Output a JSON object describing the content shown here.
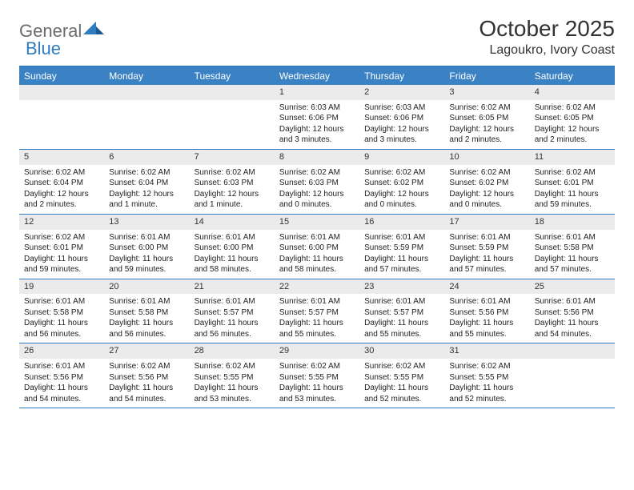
{
  "logo": {
    "text1": "General",
    "text2": "Blue"
  },
  "title": "October 2025",
  "location": "Lagoukro, Ivory Coast",
  "colors": {
    "header_bg": "#3b82c4",
    "border": "#2f7bbf",
    "daynum_bg": "#ebebeb",
    "text": "#222222",
    "logo_gray": "#6b6b6b",
    "logo_blue": "#2f7bbf"
  },
  "day_labels": [
    "Sunday",
    "Monday",
    "Tuesday",
    "Wednesday",
    "Thursday",
    "Friday",
    "Saturday"
  ],
  "weeks": [
    [
      {
        "empty": true
      },
      {
        "empty": true
      },
      {
        "empty": true
      },
      {
        "n": "1",
        "sr": "6:03 AM",
        "ss": "6:06 PM",
        "dl": "12 hours and 3 minutes."
      },
      {
        "n": "2",
        "sr": "6:03 AM",
        "ss": "6:06 PM",
        "dl": "12 hours and 3 minutes."
      },
      {
        "n": "3",
        "sr": "6:02 AM",
        "ss": "6:05 PM",
        "dl": "12 hours and 2 minutes."
      },
      {
        "n": "4",
        "sr": "6:02 AM",
        "ss": "6:05 PM",
        "dl": "12 hours and 2 minutes."
      }
    ],
    [
      {
        "n": "5",
        "sr": "6:02 AM",
        "ss": "6:04 PM",
        "dl": "12 hours and 2 minutes."
      },
      {
        "n": "6",
        "sr": "6:02 AM",
        "ss": "6:04 PM",
        "dl": "12 hours and 1 minute."
      },
      {
        "n": "7",
        "sr": "6:02 AM",
        "ss": "6:03 PM",
        "dl": "12 hours and 1 minute."
      },
      {
        "n": "8",
        "sr": "6:02 AM",
        "ss": "6:03 PM",
        "dl": "12 hours and 0 minutes."
      },
      {
        "n": "9",
        "sr": "6:02 AM",
        "ss": "6:02 PM",
        "dl": "12 hours and 0 minutes."
      },
      {
        "n": "10",
        "sr": "6:02 AM",
        "ss": "6:02 PM",
        "dl": "12 hours and 0 minutes."
      },
      {
        "n": "11",
        "sr": "6:02 AM",
        "ss": "6:01 PM",
        "dl": "11 hours and 59 minutes."
      }
    ],
    [
      {
        "n": "12",
        "sr": "6:02 AM",
        "ss": "6:01 PM",
        "dl": "11 hours and 59 minutes."
      },
      {
        "n": "13",
        "sr": "6:01 AM",
        "ss": "6:00 PM",
        "dl": "11 hours and 59 minutes."
      },
      {
        "n": "14",
        "sr": "6:01 AM",
        "ss": "6:00 PM",
        "dl": "11 hours and 58 minutes."
      },
      {
        "n": "15",
        "sr": "6:01 AM",
        "ss": "6:00 PM",
        "dl": "11 hours and 58 minutes."
      },
      {
        "n": "16",
        "sr": "6:01 AM",
        "ss": "5:59 PM",
        "dl": "11 hours and 57 minutes."
      },
      {
        "n": "17",
        "sr": "6:01 AM",
        "ss": "5:59 PM",
        "dl": "11 hours and 57 minutes."
      },
      {
        "n": "18",
        "sr": "6:01 AM",
        "ss": "5:58 PM",
        "dl": "11 hours and 57 minutes."
      }
    ],
    [
      {
        "n": "19",
        "sr": "6:01 AM",
        "ss": "5:58 PM",
        "dl": "11 hours and 56 minutes."
      },
      {
        "n": "20",
        "sr": "6:01 AM",
        "ss": "5:58 PM",
        "dl": "11 hours and 56 minutes."
      },
      {
        "n": "21",
        "sr": "6:01 AM",
        "ss": "5:57 PM",
        "dl": "11 hours and 56 minutes."
      },
      {
        "n": "22",
        "sr": "6:01 AM",
        "ss": "5:57 PM",
        "dl": "11 hours and 55 minutes."
      },
      {
        "n": "23",
        "sr": "6:01 AM",
        "ss": "5:57 PM",
        "dl": "11 hours and 55 minutes."
      },
      {
        "n": "24",
        "sr": "6:01 AM",
        "ss": "5:56 PM",
        "dl": "11 hours and 55 minutes."
      },
      {
        "n": "25",
        "sr": "6:01 AM",
        "ss": "5:56 PM",
        "dl": "11 hours and 54 minutes."
      }
    ],
    [
      {
        "n": "26",
        "sr": "6:01 AM",
        "ss": "5:56 PM",
        "dl": "11 hours and 54 minutes."
      },
      {
        "n": "27",
        "sr": "6:02 AM",
        "ss": "5:56 PM",
        "dl": "11 hours and 54 minutes."
      },
      {
        "n": "28",
        "sr": "6:02 AM",
        "ss": "5:55 PM",
        "dl": "11 hours and 53 minutes."
      },
      {
        "n": "29",
        "sr": "6:02 AM",
        "ss": "5:55 PM",
        "dl": "11 hours and 53 minutes."
      },
      {
        "n": "30",
        "sr": "6:02 AM",
        "ss": "5:55 PM",
        "dl": "11 hours and 52 minutes."
      },
      {
        "n": "31",
        "sr": "6:02 AM",
        "ss": "5:55 PM",
        "dl": "11 hours and 52 minutes."
      },
      {
        "empty": true
      }
    ]
  ],
  "labels": {
    "sunrise": "Sunrise:",
    "sunset": "Sunset:",
    "daylight": "Daylight:"
  }
}
